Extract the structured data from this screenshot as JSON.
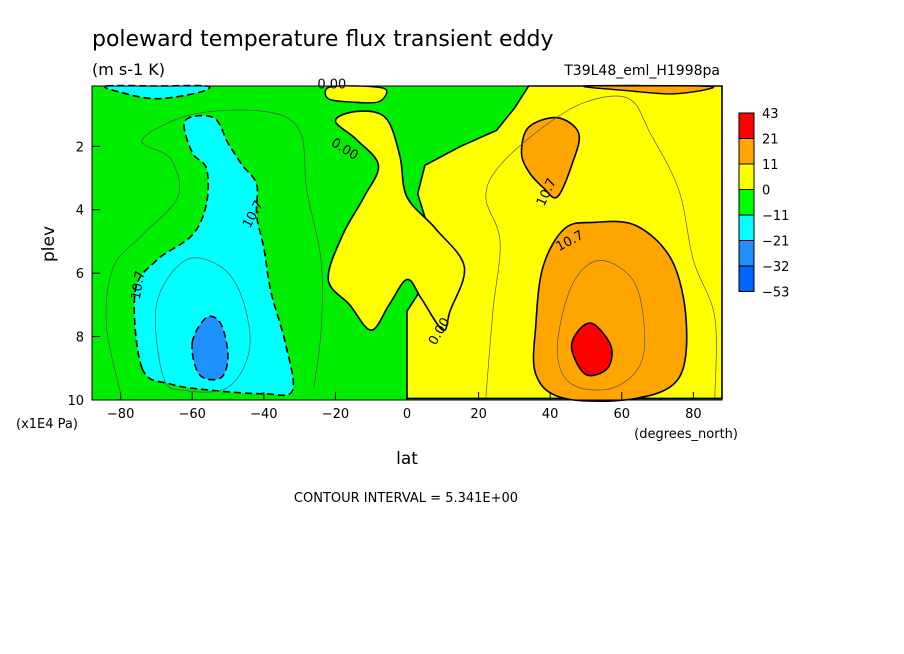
{
  "chart_data": {
    "type": "heatmap",
    "title": "poleward temperature flux transient eddy",
    "units": "(m s-1 K)",
    "dataset": "T39L48_eml_H1998pa",
    "xlabel": "lat",
    "xunits": "(degrees_north)",
    "ylabel": "plev",
    "yunits": "(x1E4 Pa)",
    "xlim": [
      -88,
      88
    ],
    "ylim": [
      0.1,
      10
    ],
    "y_inverted": true,
    "x_ticks": [
      -80,
      -60,
      -40,
      -20,
      0,
      20,
      40,
      60,
      80
    ],
    "y_ticks": [
      2,
      4,
      6,
      8,
      10
    ],
    "contour_interval_label": "CONTOUR INTERVAL = 5.341E+00",
    "contour_labels": [
      "0.00",
      "0.00",
      "10.7",
      "10.7",
      "0.00",
      "10.7",
      "10.7"
    ],
    "colorbar": {
      "levels": [
        "43",
        "21",
        "11",
        "0",
        "-11",
        "-21",
        "-32",
        "-53"
      ],
      "colors": [
        "#ff0000",
        "#ffa500",
        "#ffff00",
        "#00ff00",
        "#00ffff",
        "#1e90ff",
        "#0064ff"
      ]
    },
    "palette": {
      "green": "#00ee00",
      "yellow": "#ffff00",
      "orange": "#ffa500",
      "red": "#ff0000",
      "cyan": "#00ffff",
      "blue": "#1e90ff"
    }
  }
}
